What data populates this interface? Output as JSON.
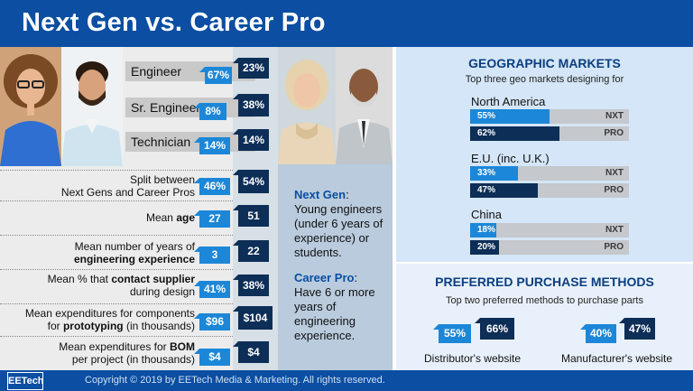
{
  "title": "Next Gen vs. Career Pro",
  "roles": [
    {
      "label": "Engineer",
      "next_gen": "67%",
      "career_pro": "23%"
    },
    {
      "label": "Sr. Engineer",
      "next_gen": "8%",
      "career_pro": "38%"
    },
    {
      "label": "Technician",
      "next_gen": "14%",
      "career_pro": "14%"
    }
  ],
  "stats": [
    {
      "line1": "Split between",
      "line2": "Next Gens and Career Pros",
      "next_gen": "46%",
      "career_pro": "54%"
    },
    {
      "line1_pre": "Mean ",
      "line1_bold": "age",
      "next_gen": "27",
      "career_pro": "51"
    },
    {
      "line1": "Mean number of years of",
      "line2_bold": "engineering experience",
      "next_gen": "3",
      "career_pro": "22"
    },
    {
      "line1_pre": "Mean % that ",
      "line1_bold": "contact supplier",
      "line2": "during design",
      "next_gen": "41%",
      "career_pro": "38%"
    },
    {
      "line1": "Mean expenditures for components",
      "line2_pre": "for ",
      "line2_bold": "prototyping",
      "line2_post": " (in thousands)",
      "next_gen": "$96",
      "career_pro": "$104"
    },
    {
      "line1_pre": "Mean expenditures for ",
      "line1_bold": "BOM",
      "line2": "per project (in thousands)",
      "next_gen": "$4",
      "career_pro": "$4"
    }
  ],
  "definitions": {
    "next_gen_head": "Next Gen",
    "next_gen_colon": ":",
    "next_gen_text": "Young engineers (under 6 years of experience) or students.",
    "career_pro_head": "Career Pro",
    "career_pro_colon": ":",
    "career_pro_text": "Have 6 or more years of engineering experience."
  },
  "geo": {
    "title": "GEOGRAPHIC MARKETS",
    "subtitle": "Top three geo markets designing for",
    "regions": [
      {
        "name": "North America",
        "nxt": {
          "label": "55%",
          "value": 55,
          "tag": "NXT"
        },
        "pro": {
          "label": "62%",
          "value": 62,
          "tag": "PRO"
        }
      },
      {
        "name": "E.U. (inc. U.K.)",
        "nxt": {
          "label": "33%",
          "value": 33,
          "tag": "NXT"
        },
        "pro": {
          "label": "47%",
          "value": 47,
          "tag": "PRO"
        }
      },
      {
        "name": "China",
        "nxt": {
          "label": "18%",
          "value": 18,
          "tag": "NXT"
        },
        "pro": {
          "label": "20%",
          "value": 20,
          "tag": "PRO"
        }
      }
    ]
  },
  "purchase": {
    "title": "PREFERRED PURCHASE METHODS",
    "subtitle": "Top two preferred methods to purchase parts",
    "methods": [
      {
        "label": "Distributor's website",
        "next_gen": "55%",
        "career_pro": "66%"
      },
      {
        "label": "Manufacturer's website",
        "next_gen": "40%",
        "career_pro": "47%"
      }
    ]
  },
  "footer": {
    "logo": "EETech",
    "copyright": "Copyright © 2019 by EETech Media & Marketing. All rights reserved."
  },
  "colors": {
    "next_gen": "#1c87d8",
    "career_pro": "#0d2e57",
    "brand": "#0b4ea2"
  }
}
